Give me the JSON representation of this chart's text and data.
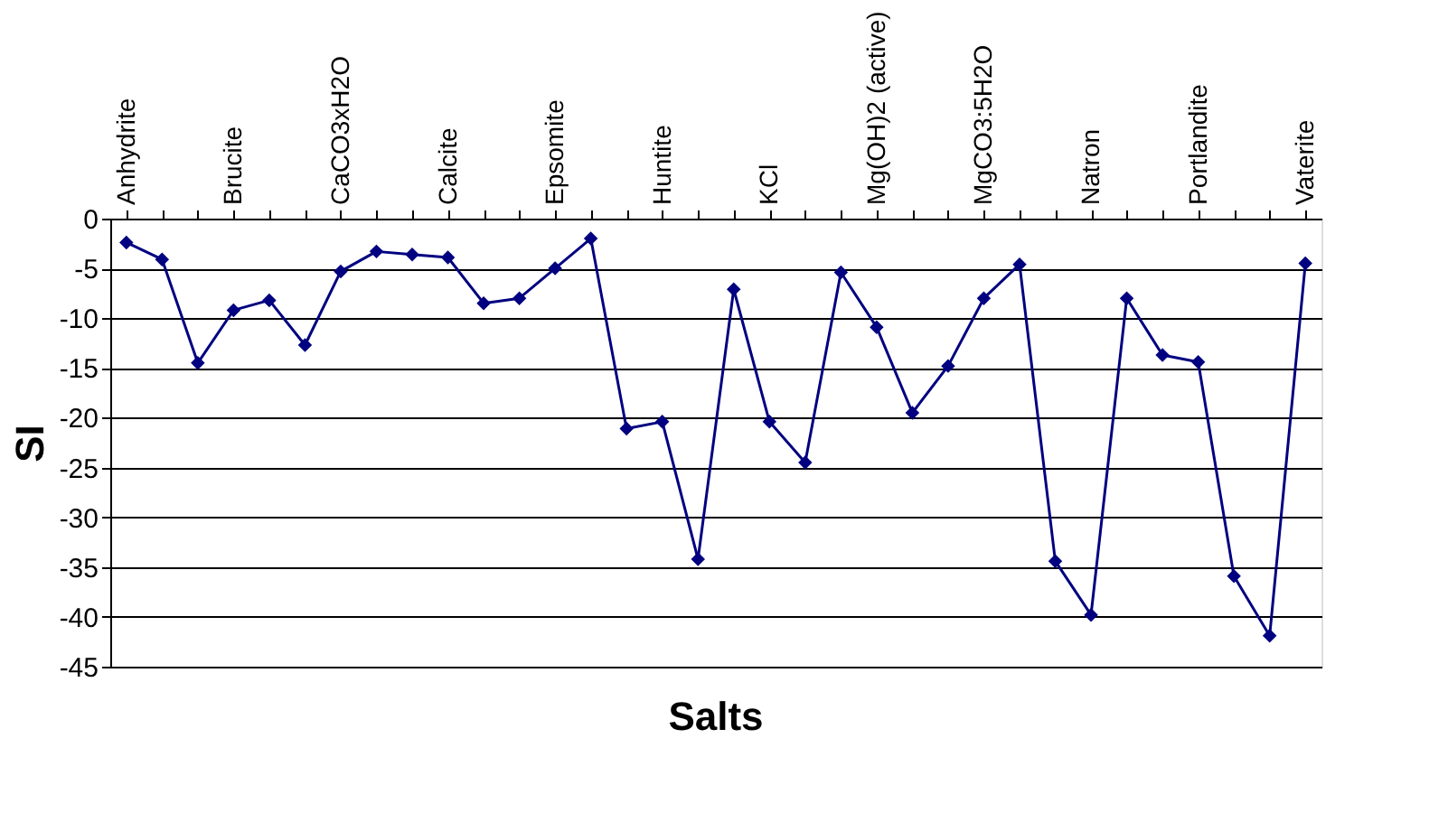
{
  "chart_data": {
    "type": "line",
    "xlabel": "Salts",
    "ylabel": "SI",
    "categories": [
      "Anhydrite",
      null,
      null,
      "Brucite",
      null,
      null,
      "CaCO3xH2O",
      null,
      null,
      "Calcite",
      null,
      null,
      "Epsomite",
      null,
      null,
      "Huntite",
      null,
      null,
      "KCl",
      null,
      null,
      "Mg(OH)2 (active)",
      null,
      null,
      "MgCO3:5H2O",
      null,
      null,
      "Natron",
      null,
      null,
      "Portlandite",
      null,
      null,
      "Vaterite"
    ],
    "series": [
      {
        "color": "#000080",
        "values": [
          -2.4,
          -4.1,
          -14.5,
          -9.2,
          -8.2,
          -12.7,
          -5.3,
          -3.3,
          -3.6,
          -3.9,
          -8.5,
          -8.0,
          -5.0,
          -2.0,
          -21.1,
          -20.4,
          -34.2,
          -7.1,
          -20.4,
          -24.5,
          -5.4,
          -10.9,
          -19.5,
          -14.8,
          -8.0,
          -4.6,
          -34.4,
          -39.8,
          -8.0,
          -13.7,
          -14.4,
          -35.9,
          -41.9,
          -4.5
        ]
      }
    ],
    "ylim": [
      -45,
      0
    ],
    "yticks": [
      -45,
      -40,
      -35,
      -30,
      -25,
      -20,
      -15,
      -10,
      -5,
      0
    ],
    "grid": "y",
    "legend": false,
    "marker": "diamond",
    "line_style": "solid"
  }
}
